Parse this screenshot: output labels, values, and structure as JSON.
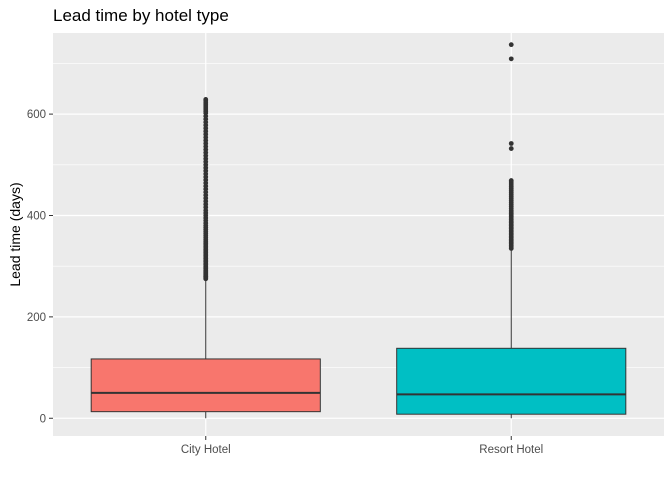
{
  "chart_data": {
    "type": "boxplot",
    "title": "Lead time by hotel type",
    "xlabel": "",
    "ylabel": "Lead time (days)",
    "ylim": [
      -35,
      760
    ],
    "yticks": [
      0,
      200,
      400,
      600
    ],
    "grid": true,
    "legend": "none",
    "colors": {
      "panel": "#ebebeb",
      "grid": "#ffffff",
      "box_line": "#333333",
      "outlier": "#333333"
    },
    "categories": [
      "City Hotel",
      "Resort Hotel"
    ],
    "series": [
      {
        "category": "City Hotel",
        "fill": "#f8766d",
        "min": 0,
        "q1": 13,
        "median": 50,
        "q3": 117,
        "whisker_high": 273,
        "outliers": [
          275,
          277,
          279,
          280,
          282,
          284,
          286,
          288,
          290,
          292,
          295,
          297,
          300,
          303,
          306,
          309,
          312,
          315,
          318,
          321,
          324,
          327,
          330,
          333,
          336,
          339,
          342,
          345,
          348,
          352,
          356,
          360,
          364,
          368,
          372,
          376,
          380,
          385,
          390,
          395,
          400,
          405,
          410,
          416,
          422,
          428,
          434,
          440,
          446,
          452,
          458,
          464,
          470,
          476,
          482,
          488,
          494,
          500,
          506,
          512,
          518,
          524,
          530,
          536,
          542,
          548,
          554,
          560,
          566,
          572,
          578,
          584,
          590,
          596,
          602,
          606,
          610,
          614,
          618,
          622,
          626,
          629
        ]
      },
      {
        "category": "Resort Hotel",
        "fill": "#00bfc4",
        "min": 0,
        "q1": 8,
        "median": 47,
        "q3": 138,
        "whisker_high": 333,
        "outliers": [
          335,
          338,
          341,
          344,
          347,
          350,
          353,
          356,
          359,
          362,
          365,
          368,
          371,
          374,
          377,
          380,
          383,
          386,
          389,
          392,
          395,
          398,
          401,
          404,
          407,
          410,
          414,
          418,
          422,
          426,
          430,
          434,
          438,
          442,
          446,
          450,
          454,
          458,
          462,
          466,
          469,
          532,
          542,
          709,
          737
        ]
      }
    ]
  }
}
